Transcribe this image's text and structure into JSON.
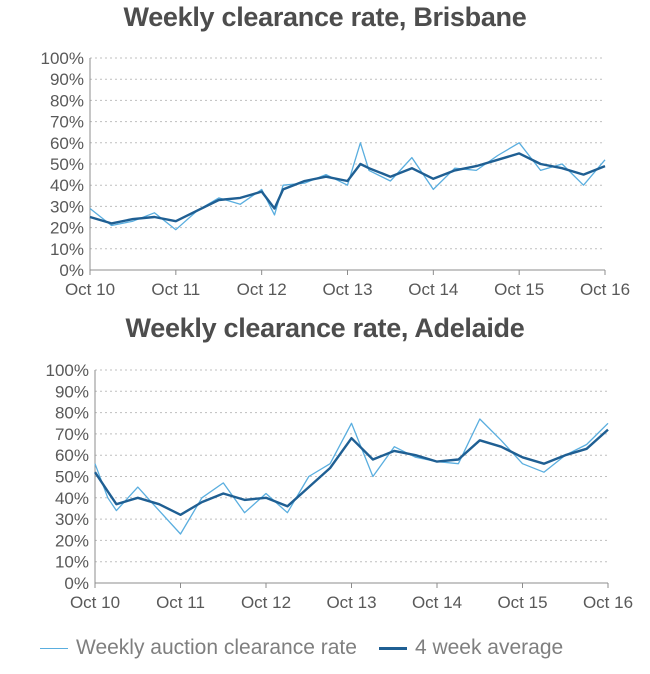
{
  "colors": {
    "weekly": "#5aaedf",
    "average": "#1f5f93",
    "grid": "#bfbfbf",
    "axis": "#8c8c8c"
  },
  "legend": {
    "weekly": "Weekly auction clearance rate",
    "average": "4 week average"
  },
  "chart_data": [
    {
      "type": "line",
      "title": "Weekly clearance rate, Brisbane",
      "ylim": [
        0,
        100
      ],
      "yticks": [
        "0%",
        "10%",
        "20%",
        "30%",
        "40%",
        "50%",
        "60%",
        "70%",
        "80%",
        "90%",
        "100%"
      ],
      "xlim": [
        2010.75,
        2016.75
      ],
      "xticks": [
        {
          "label": "Oct 10",
          "x": 2010.75
        },
        {
          "label": "Oct 11",
          "x": 2011.75
        },
        {
          "label": "Oct 12",
          "x": 2012.75
        },
        {
          "label": "Oct 13",
          "x": 2013.75
        },
        {
          "label": "Oct 14",
          "x": 2014.75
        },
        {
          "label": "Oct 15",
          "x": 2015.75
        },
        {
          "label": "Oct 16",
          "x": 2016.75
        }
      ],
      "grid": true,
      "series": [
        {
          "name": "Weekly auction clearance rate",
          "x": [
            2010.75,
            2011.0,
            2011.25,
            2011.5,
            2011.75,
            2012.0,
            2012.25,
            2012.5,
            2012.75,
            2012.9,
            2013.0,
            2013.25,
            2013.5,
            2013.75,
            2013.9,
            2014.0,
            2014.25,
            2014.5,
            2014.75,
            2015.0,
            2015.25,
            2015.5,
            2015.75,
            2016.0,
            2016.25,
            2016.5,
            2016.75
          ],
          "y": [
            29,
            21,
            23,
            27,
            19,
            28,
            34,
            31,
            38,
            26,
            40,
            41,
            45,
            40,
            60,
            47,
            42,
            53,
            38,
            48,
            47,
            54,
            60,
            47,
            50,
            40,
            52
          ]
        },
        {
          "name": "4 week average",
          "x": [
            2010.75,
            2011.0,
            2011.25,
            2011.5,
            2011.75,
            2012.0,
            2012.25,
            2012.5,
            2012.75,
            2012.9,
            2013.0,
            2013.25,
            2013.5,
            2013.75,
            2013.9,
            2014.0,
            2014.25,
            2014.5,
            2014.75,
            2015.0,
            2015.25,
            2015.5,
            2015.75,
            2016.0,
            2016.25,
            2016.5,
            2016.75
          ],
          "y": [
            25,
            22,
            24,
            25,
            23,
            28,
            33,
            34,
            37,
            29,
            38,
            42,
            44,
            42,
            50,
            48,
            44,
            48,
            43,
            47,
            49,
            52,
            55,
            50,
            48,
            45,
            49
          ]
        }
      ]
    },
    {
      "type": "line",
      "title": "Weekly clearance rate, Adelaide",
      "ylim": [
        0,
        100
      ],
      "yticks": [
        "0%",
        "10%",
        "20%",
        "30%",
        "40%",
        "50%",
        "60%",
        "70%",
        "80%",
        "90%",
        "100%"
      ],
      "xlim": [
        2010.75,
        2016.75
      ],
      "xticks": [
        {
          "label": "Oct 10",
          "x": 2010.75
        },
        {
          "label": "Oct 11",
          "x": 2011.75
        },
        {
          "label": "Oct 12",
          "x": 2012.75
        },
        {
          "label": "Oct 13",
          "x": 2013.75
        },
        {
          "label": "Oct 14",
          "x": 2014.75
        },
        {
          "label": "Oct 15",
          "x": 2015.75
        },
        {
          "label": "Oct 16",
          "x": 2016.75
        }
      ],
      "grid": true,
      "series": [
        {
          "name": "Weekly auction clearance rate",
          "x": [
            2010.75,
            2010.9,
            2011.0,
            2011.25,
            2011.5,
            2011.75,
            2012.0,
            2012.25,
            2012.5,
            2012.75,
            2013.0,
            2013.25,
            2013.5,
            2013.75,
            2014.0,
            2014.25,
            2014.5,
            2014.75,
            2015.0,
            2015.25,
            2015.5,
            2015.75,
            2016.0,
            2016.25,
            2016.5,
            2016.75
          ],
          "y": [
            56,
            40,
            34,
            45,
            34,
            23,
            40,
            47,
            33,
            42,
            33,
            50,
            56,
            75,
            50,
            64,
            59,
            57,
            56,
            77,
            67,
            56,
            52,
            60,
            65,
            75
          ]
        },
        {
          "name": "4 week average",
          "x": [
            2010.75,
            2010.9,
            2011.0,
            2011.25,
            2011.5,
            2011.75,
            2012.0,
            2012.25,
            2012.5,
            2012.75,
            2013.0,
            2013.25,
            2013.5,
            2013.75,
            2014.0,
            2014.25,
            2014.5,
            2014.75,
            2015.0,
            2015.25,
            2015.5,
            2015.75,
            2016.0,
            2016.25,
            2016.5,
            2016.75
          ],
          "y": [
            52,
            43,
            37,
            40,
            37,
            32,
            38,
            42,
            39,
            40,
            36,
            45,
            54,
            68,
            58,
            62,
            60,
            57,
            58,
            67,
            64,
            59,
            56,
            60,
            63,
            72
          ]
        }
      ]
    }
  ]
}
